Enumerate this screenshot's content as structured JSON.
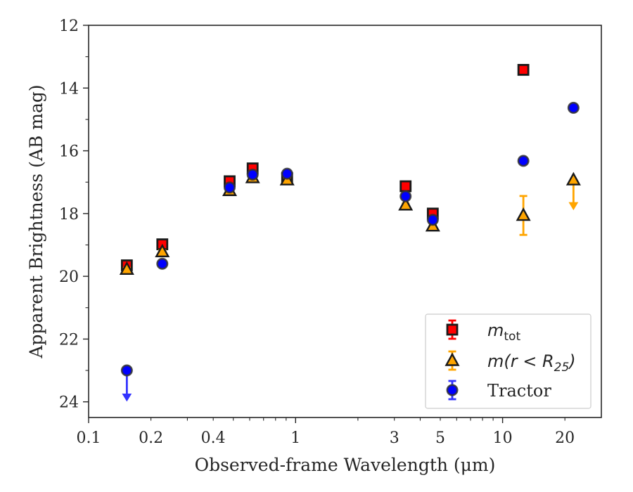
{
  "chart_data": {
    "type": "scatter",
    "xlabel": "Observed-frame Wavelength (μm)",
    "ylabel": "Apparent Brightness (AB mag)",
    "x_scale": "log",
    "xlim": [
      0.1,
      30
    ],
    "ylim": [
      24.5,
      12
    ],
    "y_inverted": true,
    "x_ticks": [
      0.1,
      0.2,
      0.4,
      1,
      3,
      5,
      10,
      20
    ],
    "x_tick_labels": [
      "0.1",
      "0.2",
      "0.4",
      "1",
      "3",
      "5",
      "10",
      "20"
    ],
    "y_ticks": [
      12,
      14,
      16,
      18,
      20,
      22,
      24
    ],
    "y_tick_labels": [
      "12",
      "14",
      "16",
      "18",
      "20",
      "22",
      "24"
    ],
    "grid": false,
    "legend_position": "lower-right",
    "series": [
      {
        "name": "m_tot",
        "legend_label_main": "m",
        "legend_label_sub": "tot",
        "marker": "square",
        "color": "#ff0000",
        "edge_color": "#1a1a1a",
        "errcolor": "#ff0000",
        "points": [
          {
            "x": 0.153,
            "y": 19.65,
            "err": 0.06
          },
          {
            "x": 0.227,
            "y": 18.98,
            "err": 0.06
          },
          {
            "x": 0.48,
            "y": 16.97,
            "err": 0.06
          },
          {
            "x": 0.62,
            "y": 16.56,
            "err": 0.06
          },
          {
            "x": 0.91,
            "y": 16.87,
            "err": 0.06
          },
          {
            "x": 3.4,
            "y": 17.13,
            "err": 0.06
          },
          {
            "x": 4.6,
            "y": 18.0,
            "err": 0.06
          },
          {
            "x": 12.6,
            "y": 13.42,
            "err": 0.06
          }
        ]
      },
      {
        "name": "m(r < R_25)",
        "legend_label_main": "m(r < R",
        "legend_label_sub": "25",
        "legend_label_tail": ")",
        "marker": "triangle",
        "color": "#ffa500",
        "edge_color": "#1a1a1a",
        "errcolor": "#ffa500",
        "points": [
          {
            "x": 0.153,
            "y": 19.78,
            "err": 0.05
          },
          {
            "x": 0.227,
            "y": 19.22,
            "err": 0.05
          },
          {
            "x": 0.48,
            "y": 17.27,
            "err": 0.05
          },
          {
            "x": 0.62,
            "y": 16.86,
            "err": 0.05
          },
          {
            "x": 0.91,
            "y": 16.93,
            "err": 0.05
          },
          {
            "x": 3.4,
            "y": 17.73,
            "err": 0.05
          },
          {
            "x": 4.6,
            "y": 18.4,
            "err": 0.05
          },
          {
            "x": 12.6,
            "y": 18.06,
            "err": 0.62
          },
          {
            "x": 22.0,
            "y": 16.93,
            "err": 0.0,
            "limit": "faint",
            "limit_to": 17.85
          }
        ]
      },
      {
        "name": "Tractor",
        "legend_label_main": "Tractor",
        "marker": "circle",
        "color": "#0000ff",
        "edge_color": "#333333",
        "errcolor": "#3333ff",
        "points": [
          {
            "x": 0.153,
            "y": 23.0,
            "err": 0.0,
            "limit": "faint",
            "limit_to": 23.95
          },
          {
            "x": 0.227,
            "y": 19.6,
            "err": 0.05
          },
          {
            "x": 0.48,
            "y": 17.17,
            "err": 0.05
          },
          {
            "x": 0.62,
            "y": 16.76,
            "err": 0.05
          },
          {
            "x": 0.91,
            "y": 16.73,
            "err": 0.05
          },
          {
            "x": 3.4,
            "y": 17.45,
            "err": 0.05
          },
          {
            "x": 4.6,
            "y": 18.2,
            "err": 0.05
          },
          {
            "x": 12.6,
            "y": 16.32,
            "err": 0.05
          },
          {
            "x": 22.0,
            "y": 14.63,
            "err": 0.05
          }
        ]
      }
    ]
  }
}
